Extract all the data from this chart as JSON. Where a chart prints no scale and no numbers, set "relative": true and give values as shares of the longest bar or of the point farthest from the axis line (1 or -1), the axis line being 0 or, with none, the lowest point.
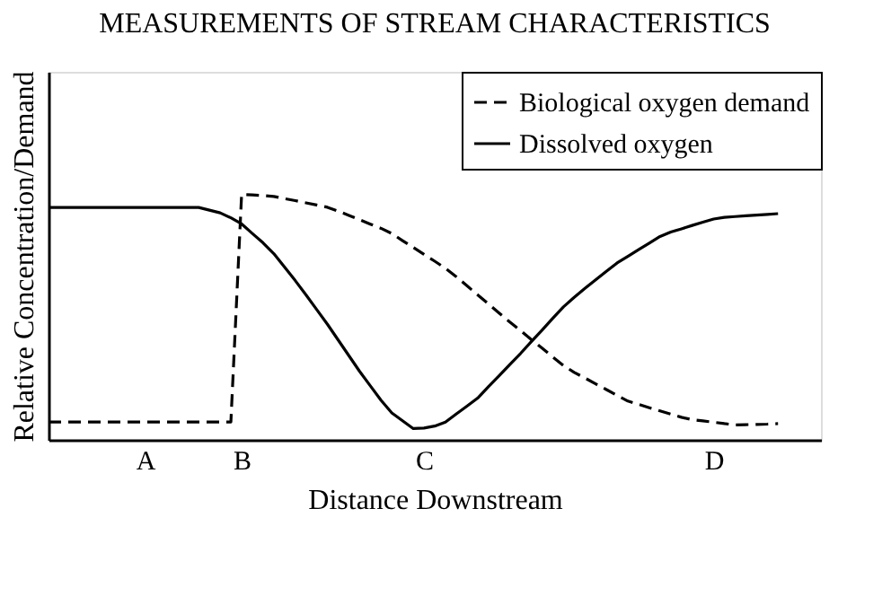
{
  "chart_data": {
    "type": "line",
    "title": "MEASUREMENTS OF STREAM CHARACTERISTICS",
    "xlabel": "Distance Downstream",
    "ylabel": "Relative Concentration/Demand",
    "relative": true,
    "categories": [
      null,
      null,
      null,
      null,
      null,
      null,
      null,
      null,
      null,
      "A",
      null,
      null,
      null,
      null,
      null,
      null,
      null,
      null,
      "B",
      null,
      null,
      null,
      null,
      null,
      null,
      null,
      null,
      null,
      null,
      null,
      null,
      null,
      null,
      null,
      null,
      "C",
      null,
      null,
      null,
      null,
      null,
      null,
      null,
      null,
      null,
      null,
      null,
      null,
      null,
      null,
      null,
      null,
      null,
      null,
      null,
      null,
      null,
      null,
      null,
      null,
      null,
      null,
      "D",
      null,
      null,
      null,
      null,
      null,
      null,
      null,
      null,
      null,
      null
    ],
    "tick_labels": "x",
    "grid": false,
    "legend": "top right",
    "marker": "none",
    "series": [
      {
        "name": "Biological oxygen demand",
        "color": "#000000",
        "line_style": "dashed",
        "values": [
          0.073,
          0.073,
          0.073,
          0.073,
          0.073,
          0.073,
          0.073,
          0.073,
          0.073,
          0.073,
          0.073,
          0.073,
          0.073,
          0.073,
          0.073,
          0.073,
          0.073,
          0.073,
          1.0,
          0.998,
          0.996,
          0.992,
          0.983,
          0.975,
          0.966,
          0.957,
          0.948,
          0.932,
          0.915,
          0.897,
          0.879,
          0.862,
          0.841,
          0.812,
          0.784,
          0.756,
          0.728,
          0.699,
          0.665,
          0.628,
          0.591,
          0.554,
          0.517,
          0.48,
          0.445,
          0.409,
          0.374,
          0.338,
          0.303,
          0.275,
          0.252,
          0.228,
          0.205,
          0.181,
          0.158,
          0.145,
          0.131,
          0.118,
          0.105,
          0.092,
          0.082,
          0.077,
          0.072,
          0.066,
          0.061,
          0.062,
          0.063,
          0.064,
          0.066,
          null,
          null,
          null,
          null
        ]
      },
      {
        "name": "Dissolved oxygen",
        "color": "#000000",
        "line_style": "solid",
        "values": [
          0.947,
          0.947,
          0.947,
          0.947,
          0.947,
          0.947,
          0.947,
          0.947,
          0.947,
          0.947,
          0.947,
          0.947,
          0.947,
          0.947,
          0.947,
          0.936,
          0.925,
          0.905,
          0.88,
          0.841,
          0.803,
          0.759,
          0.704,
          0.649,
          0.591,
          0.531,
          0.471,
          0.407,
          0.343,
          0.279,
          0.22,
          0.161,
          0.11,
          0.078,
          0.046,
          0.048,
          0.056,
          0.072,
          0.105,
          0.137,
          0.17,
          0.216,
          0.261,
          0.307,
          0.352,
          0.4,
          0.447,
          0.495,
          0.542,
          0.581,
          0.617,
          0.652,
          0.687,
          0.721,
          0.748,
          0.775,
          0.802,
          0.829,
          0.847,
          0.86,
          0.874,
          0.887,
          0.9,
          0.907,
          0.91,
          0.913,
          0.916,
          0.919,
          0.922,
          null,
          null,
          null,
          null
        ]
      }
    ]
  }
}
